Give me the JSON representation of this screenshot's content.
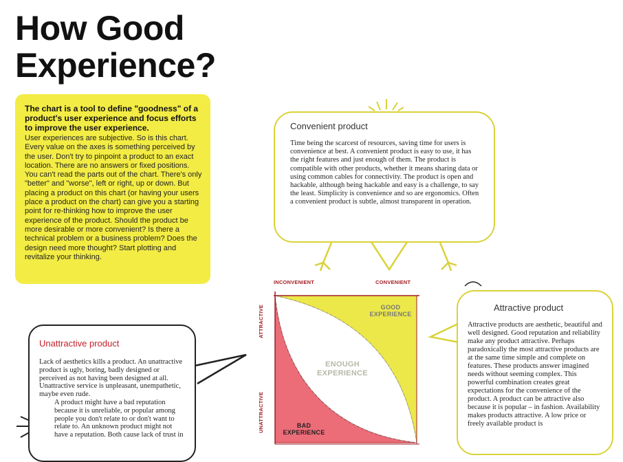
{
  "title_line1": "How Good",
  "title_line2": "Experience?",
  "intro": {
    "lead": "The chart is a tool to define \"goodness\" of a product's user experience and focus efforts to improve the user experience.",
    "body": "User experiences are subjective. So is this chart. Every value on the axes is something perceived by the user. Don't try to pinpoint a product to an exact location. There are no answers or fixed positions. You can't read the parts out of the chart. There's only \"better\" and \"worse\", left or right, up or down. But placing a product on this chart (or having your users place a product on the chart) can give you a starting point for re-thinking how to improve the user experience of the product. Should the product be more desirable or more convenient? Is there a technical problem or a business problem? Does the design need more thought? Start plotting and revitalize your thinking."
  },
  "convenient": {
    "title": "Convenient product",
    "text": "Time being the scarcest of resources, saving time for users is convenience at best. A convenient product is easy to use, it has the right features and just enough of them. The product is compatible with other products, whether it means sharing data or using common cables for connectivity. The product is open and hackable, although being hackable and easy is a challenge, to say the least. Simplicity is convenience and so are ergonomics. Often a convenient product is subtle, almost transparent in operation."
  },
  "attractive": {
    "title": "Attractive product",
    "text": "Attractive products are aesthetic, beautiful and well designed. Good reputation and reliability make any product attractive. Perhaps paradoxically the most attractive products are at the same time simple and complete on features. These products answer imagined needs without seeming complex. This powerful combination creates great expectations for the convenience of the product. A product can be attractive also because it is popular – in fashion. Availability makes products attractive. A low price or freely available product is"
  },
  "unattractive": {
    "title": "Unattractive product",
    "text1": "Lack of aesthetics kills a product. An unattractive product is ugly, boring, badly designed or perceived as not having been designed at all. Unattractive service is unpleasant, unempathetic, maybe even rude.",
    "text2": "A product might have a bad reputation because it is unreliable, or popular among people you don't relate to or don't want to relate to. An unknown product might not have a reputation. Both cause lack of trust in"
  },
  "chart_data": {
    "type": "diagram",
    "x_axis_left": "INCONVENIENT",
    "x_axis_right": "CONVENIENT",
    "y_axis_top": "ATTRACTIVE",
    "y_axis_bottom": "UNATTRACTIVE",
    "regions": [
      "GOOD EXPERIENCE",
      "ENOUGH EXPERIENCE",
      "BAD EXPERIENCE"
    ],
    "colors": {
      "good": "#ece84a",
      "bad": "#ec6c78",
      "enough": "#ffffff",
      "axis": "#9c1f25"
    }
  }
}
